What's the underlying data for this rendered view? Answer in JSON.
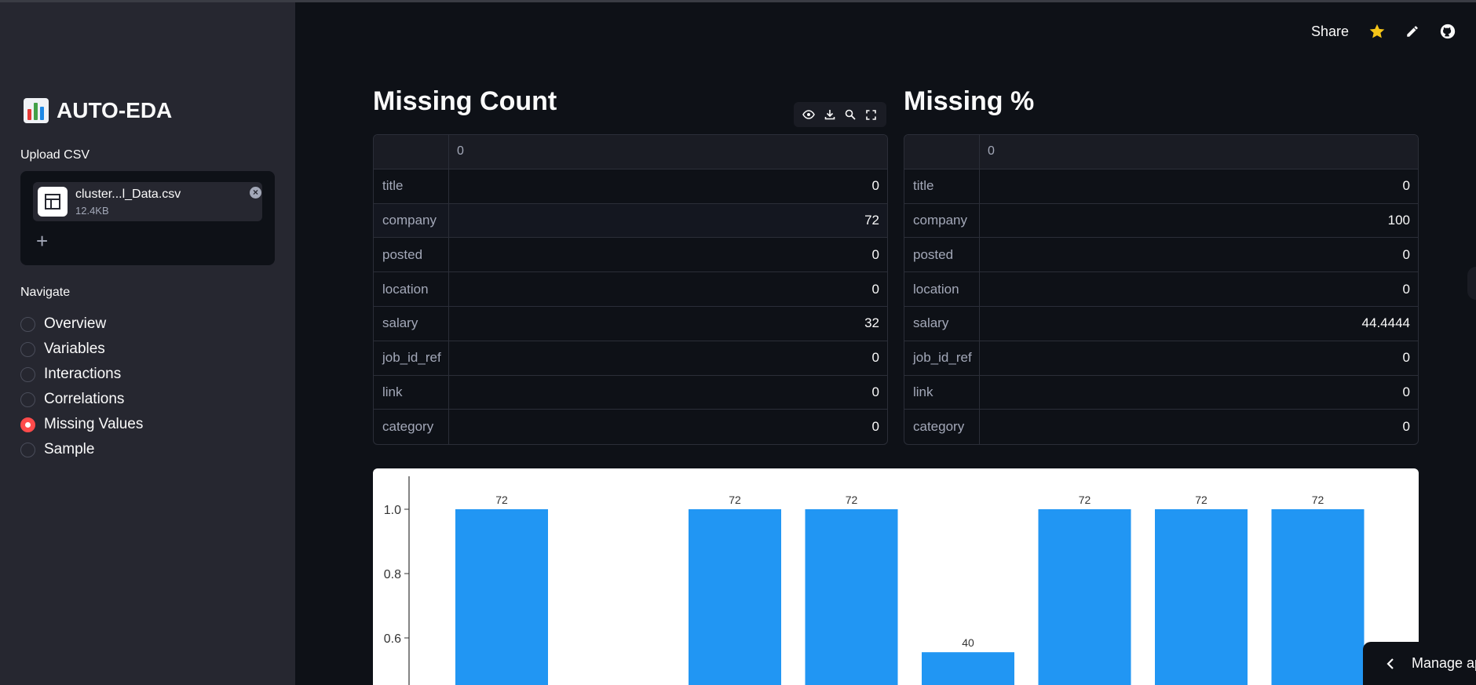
{
  "sidebar": {
    "app_title": "AUTO-EDA",
    "app_icon": "bar-chart-icon",
    "upload_label": "Upload CSV",
    "file": {
      "name": "cluster...l_Data.csv",
      "size": "12.4KB"
    },
    "nav_label": "Navigate",
    "nav_items": [
      {
        "label": "Overview",
        "selected": false
      },
      {
        "label": "Variables",
        "selected": false
      },
      {
        "label": "Interactions",
        "selected": false
      },
      {
        "label": "Correlations",
        "selected": false
      },
      {
        "label": "Missing Values",
        "selected": true
      },
      {
        "label": "Sample",
        "selected": false
      }
    ]
  },
  "header": {
    "share_label": "Share"
  },
  "missing_count": {
    "title": "Missing Count",
    "column_header": "0",
    "rows": [
      {
        "index": "title",
        "value": "0"
      },
      {
        "index": "company",
        "value": "72"
      },
      {
        "index": "posted",
        "value": "0"
      },
      {
        "index": "location",
        "value": "0"
      },
      {
        "index": "salary",
        "value": "32"
      },
      {
        "index": "job_id_ref",
        "value": "0"
      },
      {
        "index": "link",
        "value": "0"
      },
      {
        "index": "category",
        "value": "0"
      }
    ]
  },
  "missing_pct": {
    "title": "Missing %",
    "column_header": "0",
    "rows": [
      {
        "index": "title",
        "value": "0"
      },
      {
        "index": "company",
        "value": "100"
      },
      {
        "index": "posted",
        "value": "0"
      },
      {
        "index": "location",
        "value": "0"
      },
      {
        "index": "salary",
        "value": "44.4444"
      },
      {
        "index": "job_id_ref",
        "value": "0"
      },
      {
        "index": "link",
        "value": "0"
      },
      {
        "index": "category",
        "value": "0"
      }
    ]
  },
  "chart_data": {
    "type": "bar",
    "values": [
      1.0,
      0,
      1.0,
      1.0,
      0.5556,
      1.0,
      1.0,
      1.0
    ],
    "data_labels": [
      "72",
      "",
      "72",
      "72",
      "40",
      "72",
      "72",
      "72"
    ],
    "yticks": [
      "1.0",
      "0.8",
      "0.6"
    ],
    "ylim": [
      0,
      1.08
    ],
    "color": "#2196f3"
  },
  "manage_app_label": "Manage app"
}
